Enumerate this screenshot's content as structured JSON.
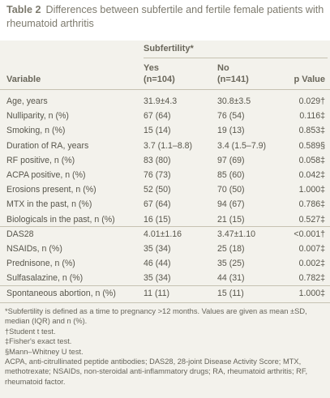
{
  "caption": {
    "table_number": "Table 2",
    "title": "Differences between subfertile and fertile female patients with rheumatoid arthritis"
  },
  "header": {
    "group_label": "Subfertility*",
    "variable_label": "Variable",
    "yes_label": "Yes",
    "yes_n": "(n=104)",
    "no_label": "No",
    "no_n": "(n=141)",
    "p_label": "p Value"
  },
  "rows": [
    {
      "variable": "Age, years",
      "yes": "31.9±4.3",
      "no": "30.8±3.5",
      "p": "0.029†"
    },
    {
      "variable": "Nulliparity, n (%)",
      "yes": "67 (64)",
      "no": "76 (54)",
      "p": "0.116‡"
    },
    {
      "variable": "Smoking, n (%)",
      "yes": "15 (14)",
      "no": "19 (13)",
      "p": "0.853‡"
    },
    {
      "variable": "Duration of RA, years",
      "yes": "3.7 (1.1–8.8)",
      "no": "3.4 (1.5–7.9)",
      "p": "0.589§"
    },
    {
      "variable": "RF positive, n (%)",
      "yes": "83 (80)",
      "no": "97 (69)",
      "p": "0.058‡"
    },
    {
      "variable": "ACPA positive, n (%)",
      "yes": "76 (73)",
      "no": "85 (60)",
      "p": "0.042‡"
    },
    {
      "variable": "Erosions present, n (%)",
      "yes": "52 (50)",
      "no": "70 (50)",
      "p": "1.000‡"
    },
    {
      "variable": "MTX in the past, n (%)",
      "yes": "67 (64)",
      "no": "94 (67)",
      "p": "0.786‡"
    },
    {
      "variable": "Biologicals in the past, n (%)",
      "yes": "16 (15)",
      "no": "21 (15)",
      "p": "0.527‡"
    },
    {
      "variable": "DAS28",
      "yes": "4.01±1.16",
      "no": "3.47±1.10",
      "p": "<0.001†"
    },
    {
      "variable": "NSAIDs, n (%)",
      "yes": "35 (34)",
      "no": "25 (18)",
      "p": "0.007‡"
    },
    {
      "variable": "Prednisone, n (%)",
      "yes": "46 (44)",
      "no": "35 (25)",
      "p": "0.002‡"
    },
    {
      "variable": "Sulfasalazine, n (%)",
      "yes": "35 (34)",
      "no": "44 (31)",
      "p": "0.782‡"
    },
    {
      "variable": "Spontaneous abortion, n (%)",
      "yes": "11 (11)",
      "no": "15 (11)",
      "p": "1.000‡"
    }
  ],
  "footnotes": [
    "*Subfertility is defined as a time to pregnancy >12 months. Values are given as mean ±SD, median (IQR) and n (%).",
    "†Student t test.",
    "‡Fisher's exact test.",
    "§Mann–Whitney U test.",
    "ACPA, anti-citrullinated peptide antibodies; DAS28, 28-joint Disease Activity Score; MTX, methotrexate; NSAIDs, non-steroidal anti-inflammatory drugs; RA, rheumatoid arthritis; RF, rheumatoid factor."
  ]
}
